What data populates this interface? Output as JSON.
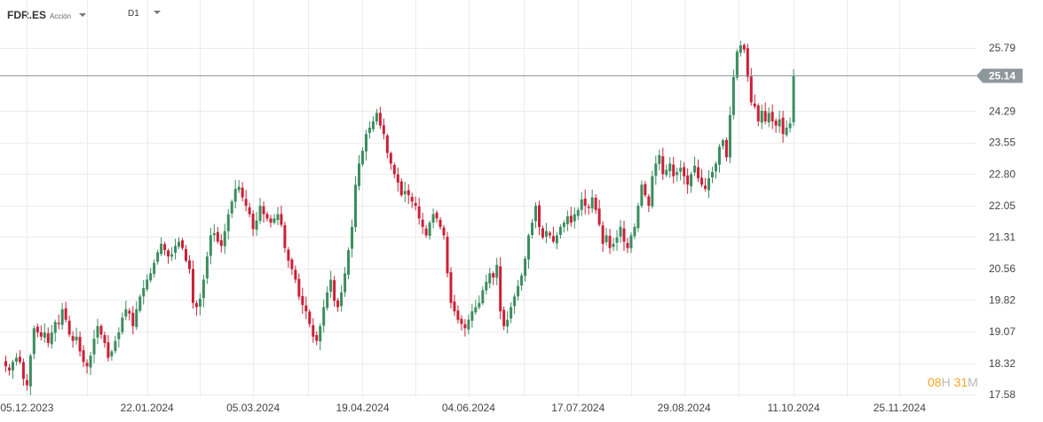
{
  "toolbar": {
    "symbol": "FDR.ES",
    "symbol_type": "Acción",
    "timeframe": "D1"
  },
  "timer": {
    "hours": "08",
    "h_unit": "H",
    "minutes": "31",
    "m_unit": "M"
  },
  "colors": {
    "up": "#3b8d5f",
    "down": "#cc1f36",
    "grid": "#ececec",
    "price_line": "#8e979b",
    "price_tag": "#8e979b"
  },
  "chart_data": {
    "type": "candlestick",
    "symbol": "FDR.ES",
    "timeframe": "D1",
    "last_price": "25.14",
    "ylim": [
      17.58,
      26.3
    ],
    "y_ticks": [
      "25.79",
      "24.29",
      "23.55",
      "22.80",
      "22.05",
      "21.31",
      "20.56",
      "19.82",
      "19.07",
      "18.32",
      "17.58"
    ],
    "x_ticks": [
      "05.12.2023",
      "22.01.2024",
      "05.03.2024",
      "19.04.2024",
      "04.06.2024",
      "17.07.2024",
      "29.08.2024",
      "11.10.2024",
      "25.11.2024"
    ],
    "x_ticks_index": [
      6,
      40,
      70,
      101,
      131,
      162,
      192,
      223,
      253
    ],
    "closes": [
      18.25,
      18.15,
      18.35,
      18.45,
      18.35,
      17.95,
      17.8,
      18.5,
      19.15,
      19.05,
      18.95,
      19.05,
      18.8,
      19.05,
      19.3,
      19.25,
      19.6,
      19.35,
      19.0,
      18.85,
      18.95,
      18.6,
      18.35,
      18.25,
      18.5,
      18.9,
      19.2,
      19.0,
      18.8,
      18.45,
      18.6,
      18.85,
      19.05,
      19.4,
      19.6,
      19.5,
      19.2,
      19.6,
      19.9,
      20.1,
      20.3,
      20.45,
      20.7,
      20.95,
      21.15,
      21.0,
      20.85,
      20.9,
      21.1,
      21.2,
      21.05,
      20.75,
      20.55,
      19.75,
      19.65,
      19.85,
      20.3,
      20.85,
      21.35,
      21.4,
      21.2,
      21.1,
      21.45,
      21.85,
      22.15,
      22.45,
      22.5,
      22.25,
      22.05,
      21.85,
      21.5,
      21.7,
      22.05,
      21.85,
      21.75,
      21.65,
      21.75,
      21.85,
      21.6,
      21.05,
      20.75,
      20.55,
      20.3,
      19.9,
      19.7,
      19.55,
      19.25,
      18.95,
      18.85,
      19.2,
      19.65,
      20.0,
      20.3,
      19.8,
      19.65,
      20.0,
      20.45,
      21.0,
      21.55,
      22.55,
      23.05,
      23.35,
      23.75,
      23.9,
      24.05,
      24.25,
      23.95,
      23.75,
      23.3,
      23.05,
      22.8,
      22.6,
      22.3,
      22.4,
      22.3,
      22.15,
      22.05,
      21.75,
      21.55,
      21.35,
      21.65,
      21.85,
      21.75,
      21.55,
      21.35,
      20.45,
      19.75,
      19.55,
      19.35,
      19.25,
      19.15,
      19.35,
      19.55,
      19.65,
      19.75,
      20.05,
      20.25,
      20.45,
      20.35,
      20.65,
      19.55,
      19.2,
      19.35,
      19.65,
      19.9,
      20.15,
      20.4,
      20.8,
      21.35,
      21.65,
      22.05,
      21.55,
      21.3,
      21.45,
      21.35,
      21.2,
      21.35,
      21.55,
      21.65,
      21.8,
      21.65,
      21.85,
      21.95,
      22.2,
      22.05,
      22.0,
      22.25,
      21.95,
      21.6,
      21.15,
      21.35,
      21.05,
      21.15,
      21.3,
      21.55,
      21.2,
      21.05,
      21.35,
      21.55,
      22.05,
      22.55,
      22.3,
      22.05,
      22.75,
      23.05,
      23.25,
      22.8,
      22.9,
      23.05,
      22.75,
      22.85,
      22.95,
      22.75,
      22.55,
      22.8,
      23.0,
      22.7,
      22.55,
      22.45,
      22.7,
      22.85,
      23.05,
      23.45,
      23.6,
      23.2,
      24.2,
      25.1,
      25.7,
      25.85,
      25.75,
      25.1,
      24.5,
      24.4,
      24.05,
      24.3,
      24.05,
      24.25,
      24.05,
      23.95,
      24.1,
      23.75,
      23.9,
      24.0,
      25.14
    ]
  }
}
